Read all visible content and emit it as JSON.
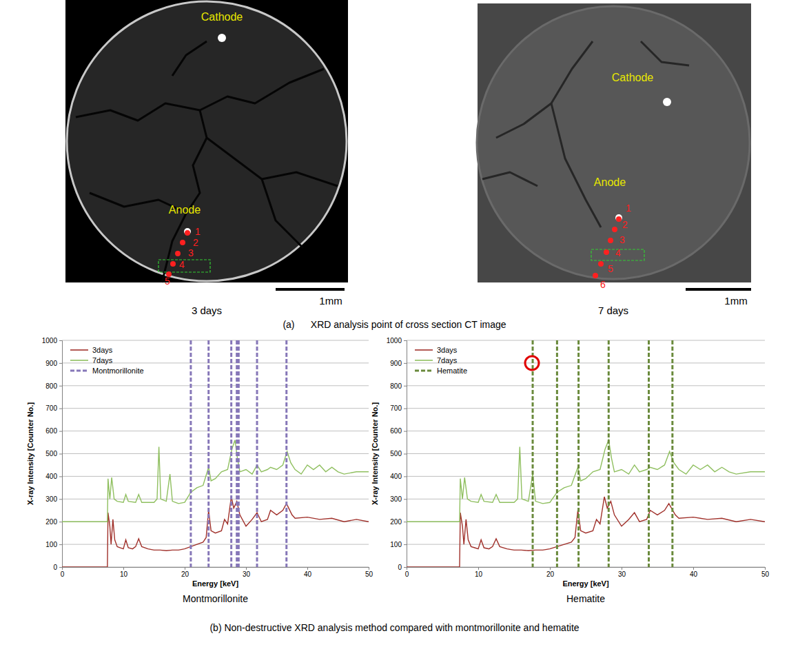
{
  "figure": {
    "panel_a": {
      "caption": "(a)      XRD analysis point of cross section CT image",
      "images": [
        {
          "label": "3 days",
          "cathode": "Cathode",
          "anode": "Anode",
          "points": [
            "1",
            "2",
            "3",
            "4",
            "5"
          ],
          "scale_bar": "1mm"
        },
        {
          "label": "7 days",
          "cathode": "Cathode",
          "anode": "Anode",
          "points": [
            "1",
            "2",
            "3",
            "4",
            "5",
            "6"
          ],
          "scale_bar": "1mm"
        }
      ]
    },
    "panel_b": {
      "caption": "(b) Non-destructive XRD analysis method compared with montmorillonite and hematite"
    }
  },
  "chart_data": [
    {
      "type": "line",
      "title": "Montmorillonite",
      "x_label": "Energy [keV]",
      "y_label": "X-ray Intensity [Counter No.]",
      "xlim": [
        0,
        50
      ],
      "xticks": [
        0,
        10,
        20,
        30,
        40,
        50
      ],
      "ylim": [
        0,
        1000
      ],
      "yticks": [
        0,
        100,
        200,
        300,
        400,
        500,
        600,
        700,
        800,
        900,
        1000
      ],
      "grid": true,
      "legend": "top-left",
      "series": [
        {
          "name": "3days",
          "color": "#a0302a",
          "x": [
            0,
            7.4,
            7.5,
            7.8,
            8.0,
            8.3,
            8.6,
            9,
            9.5,
            10,
            10.4,
            10.8,
            11.5,
            12,
            12.5,
            13,
            14,
            15,
            16,
            17,
            18,
            19,
            20,
            21,
            22,
            23,
            23.5,
            23.9,
            24.3,
            25,
            26,
            26.5,
            27,
            27.6,
            28,
            28.5,
            29,
            30,
            31,
            31.8,
            32.5,
            33.5,
            34,
            35,
            36,
            36.6,
            37.5,
            38,
            40,
            42,
            44,
            46,
            48,
            50
          ],
          "values": [
            0,
            0,
            240,
            180,
            100,
            210,
            120,
            90,
            85,
            80,
            120,
            85,
            80,
            90,
            125,
            90,
            80,
            75,
            75,
            72,
            75,
            75,
            80,
            90,
            100,
            110,
            130,
            250,
            160,
            150,
            160,
            210,
            190,
            310,
            260,
            290,
            230,
            180,
            210,
            240,
            200,
            210,
            250,
            230,
            250,
            280,
            230,
            215,
            220,
            210,
            215,
            200,
            210,
            200
          ]
        },
        {
          "name": "7days",
          "color": "#8fbf5f",
          "x": [
            0,
            7.4,
            7.5,
            7.8,
            8.1,
            8.5,
            9,
            10,
            10.4,
            10.8,
            12,
            12.5,
            13,
            15,
            15.5,
            15.8,
            16.1,
            17,
            17.6,
            18,
            19,
            20,
            21,
            22,
            23,
            23.9,
            24.3,
            25,
            26,
            27,
            27.7,
            28.2,
            28.6,
            29,
            30,
            31,
            31.8,
            32.5,
            33.5,
            34,
            35,
            36,
            36.7,
            37.3,
            38,
            39,
            40,
            41,
            42,
            43,
            44,
            45,
            46,
            48,
            50
          ],
          "values": [
            200,
            200,
            390,
            300,
            395,
            300,
            290,
            285,
            320,
            290,
            285,
            320,
            285,
            285,
            300,
            530,
            300,
            290,
            410,
            290,
            280,
            285,
            330,
            350,
            360,
            440,
            380,
            390,
            420,
            430,
            520,
            560,
            480,
            420,
            430,
            410,
            450,
            420,
            430,
            440,
            430,
            450,
            510,
            460,
            430,
            410,
            450,
            430,
            450,
            420,
            440,
            420,
            410,
            420,
            420
          ]
        }
      ],
      "reference_lines": {
        "name": "Montmorillonite",
        "color": "#8677b8",
        "line_style": "dashed",
        "x": [
          21,
          23.9,
          27.6,
          28.5,
          28.8,
          31.8,
          36.6
        ]
      }
    },
    {
      "type": "line",
      "title": "Hematite",
      "x_label": "Energy [keV]",
      "y_label": "X-ray Intensity [Counter No.]",
      "xlim": [
        0,
        50
      ],
      "xticks": [
        0,
        10,
        20,
        30,
        40,
        50
      ],
      "ylim": [
        0,
        1000
      ],
      "yticks": [
        0,
        100,
        200,
        300,
        400,
        500,
        600,
        700,
        800,
        900,
        1000
      ],
      "grid": true,
      "legend": "top-left",
      "series": [
        {
          "name": "3days",
          "color": "#a0302a",
          "x": [
            0,
            7.4,
            7.5,
            7.8,
            8.0,
            8.3,
            8.6,
            9,
            9.5,
            10,
            10.4,
            10.8,
            11.5,
            12,
            12.5,
            13,
            14,
            15,
            16,
            17,
            18,
            19,
            20,
            21,
            22,
            23,
            23.5,
            23.9,
            24.3,
            25,
            26,
            26.5,
            27,
            27.6,
            28,
            28.5,
            29,
            30,
            31,
            31.8,
            32.5,
            33.5,
            34,
            35,
            36,
            36.6,
            37.5,
            38,
            40,
            42,
            44,
            46,
            48,
            50
          ],
          "values": [
            0,
            0,
            240,
            180,
            100,
            210,
            120,
            90,
            85,
            80,
            120,
            85,
            80,
            90,
            125,
            90,
            80,
            75,
            75,
            72,
            75,
            75,
            80,
            90,
            100,
            110,
            130,
            250,
            160,
            150,
            160,
            210,
            190,
            310,
            260,
            290,
            230,
            180,
            210,
            240,
            200,
            210,
            250,
            230,
            250,
            280,
            230,
            215,
            220,
            210,
            215,
            200,
            210,
            200
          ]
        },
        {
          "name": "7days",
          "color": "#8fbf5f",
          "x": [
            0,
            7.4,
            7.5,
            7.8,
            8.1,
            8.5,
            9,
            10,
            10.4,
            10.8,
            12,
            12.5,
            13,
            15,
            15.5,
            15.8,
            16.1,
            17,
            17.6,
            18,
            19,
            20,
            21,
            22,
            23,
            23.9,
            24.3,
            25,
            26,
            27,
            27.7,
            28.2,
            28.6,
            29,
            30,
            31,
            31.8,
            32.5,
            33.5,
            34,
            35,
            36,
            36.7,
            37.3,
            38,
            39,
            40,
            41,
            42,
            43,
            44,
            45,
            46,
            48,
            50
          ],
          "values": [
            200,
            200,
            390,
            300,
            395,
            300,
            290,
            285,
            320,
            290,
            285,
            320,
            285,
            285,
            300,
            530,
            300,
            290,
            410,
            290,
            280,
            285,
            330,
            350,
            360,
            440,
            380,
            390,
            420,
            430,
            520,
            560,
            480,
            420,
            430,
            410,
            450,
            420,
            430,
            440,
            430,
            450,
            510,
            460,
            430,
            410,
            450,
            430,
            450,
            420,
            440,
            420,
            410,
            420,
            420
          ]
        }
      ],
      "reference_lines": {
        "name": "Hematite",
        "color": "#6a8a3c",
        "line_style": "dashed",
        "x": [
          17.6,
          21,
          24,
          28.2,
          33.8,
          37.1
        ]
      },
      "annotations": [
        {
          "x": 17.5,
          "y": 900,
          "marker": "circle",
          "color": "#e00000"
        }
      ]
    }
  ]
}
